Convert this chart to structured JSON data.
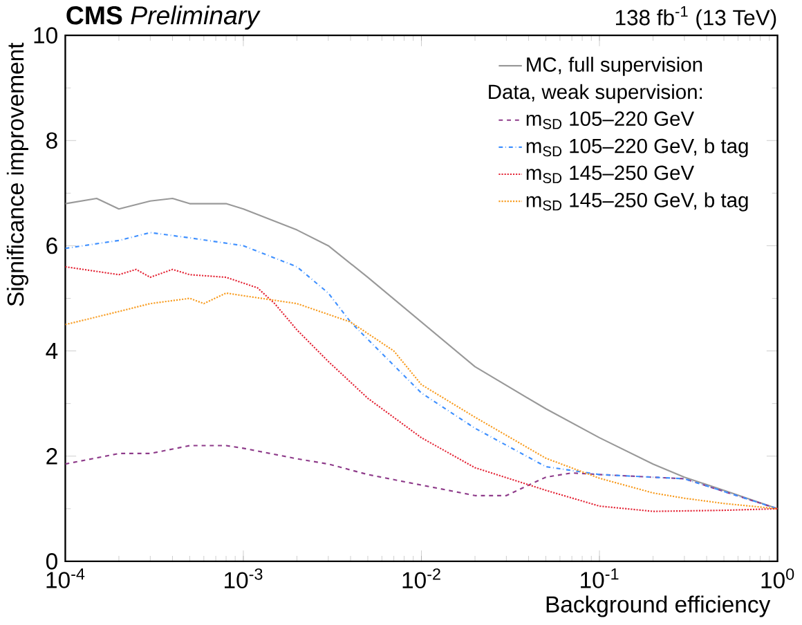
{
  "chart_data": {
    "type": "line",
    "title": "**CMS** *Preliminary*",
    "subtitle": "138 fb$^{-1}$ (13 TeV)",
    "xlabel": "Background efficiency",
    "ylabel": "Significance improvement",
    "legend_title": "Data, weak supervision:",
    "log": "x",
    "xlim": [
      0.0001,
      1
    ],
    "ylim": [
      0,
      10
    ],
    "xticks": [
      {
        "value": 0.0001,
        "label": "10$^{-4}$"
      },
      {
        "value": 0.001,
        "label": "10$^{-3}$"
      },
      {
        "value": 0.01,
        "label": "10$^{-2}$"
      },
      {
        "value": 0.1,
        "label": "10$^{-1}$"
      },
      {
        "value": 1,
        "label": "10$^{0}$"
      }
    ],
    "yticks": [
      0,
      2,
      4,
      6,
      8,
      10
    ],
    "grid": false,
    "legend": "top right",
    "marker": "none",
    "series": [
      {
        "name": "MC, full supervision",
        "color": "#999999",
        "line_style": "solid",
        "x": [
          0.0001,
          0.00015,
          0.0002,
          0.0003,
          0.0004,
          0.0005,
          0.0008,
          0.001,
          0.002,
          0.003,
          0.005,
          0.01,
          0.02,
          0.05,
          0.1,
          0.2,
          0.3,
          0.5,
          1
        ],
        "values": [
          6.8,
          6.9,
          6.7,
          6.85,
          6.9,
          6.8,
          6.8,
          6.7,
          6.3,
          6.0,
          5.4,
          4.55,
          3.7,
          2.9,
          2.35,
          1.85,
          1.6,
          1.35,
          1.0
        ]
      },
      {
        "name": "m$_{SD}$ 105–220 GeV",
        "color": "#8e3b8a",
        "line_style": "dashed",
        "x": [
          0.0001,
          0.0002,
          0.0003,
          0.0005,
          0.0008,
          0.001,
          0.002,
          0.003,
          0.005,
          0.01,
          0.02,
          0.03,
          0.04,
          0.05,
          0.07,
          0.1,
          0.3,
          1
        ],
        "values": [
          1.85,
          2.05,
          2.05,
          2.2,
          2.2,
          2.15,
          1.95,
          1.85,
          1.65,
          1.45,
          1.25,
          1.25,
          1.45,
          1.6,
          1.68,
          1.65,
          1.57,
          1.0
        ]
      },
      {
        "name": "m$_{SD}$ 105–220 GeV, b tag",
        "color": "#3f90ff",
        "line_style": "dashdot",
        "x": [
          0.0001,
          0.0002,
          0.0003,
          0.0005,
          0.001,
          0.002,
          0.003,
          0.004,
          0.01,
          0.02,
          0.05,
          0.1,
          0.3,
          1
        ],
        "values": [
          5.95,
          6.1,
          6.25,
          6.15,
          6.0,
          5.6,
          5.1,
          4.55,
          3.2,
          2.53,
          1.8,
          1.65,
          1.57,
          1.0
        ]
      },
      {
        "name": "m$_{SD}$ 145–250 GeV",
        "color": "#e42536",
        "line_style": "dotted",
        "x": [
          0.0001,
          0.0002,
          0.00025,
          0.0003,
          0.0004,
          0.0005,
          0.0008,
          0.0012,
          0.0015,
          0.002,
          0.003,
          0.005,
          0.01,
          0.02,
          0.05,
          0.1,
          0.2,
          0.5,
          1
        ],
        "values": [
          5.6,
          5.45,
          5.55,
          5.4,
          5.55,
          5.45,
          5.4,
          5.2,
          4.9,
          4.4,
          3.8,
          3.1,
          2.35,
          1.78,
          1.35,
          1.05,
          0.95,
          0.97,
          1.0
        ]
      },
      {
        "name": "m$_{SD}$ 145–250 GeV, b tag",
        "color": "#f89c20",
        "line_style": "dotted",
        "x": [
          0.0001,
          0.0002,
          0.0003,
          0.0005,
          0.0006,
          0.0008,
          0.001,
          0.002,
          0.004,
          0.007,
          0.01,
          0.02,
          0.05,
          0.1,
          0.2,
          0.3,
          0.5,
          1
        ],
        "values": [
          4.5,
          4.75,
          4.9,
          5.0,
          4.9,
          5.1,
          5.05,
          4.9,
          4.55,
          4.0,
          3.36,
          2.74,
          1.96,
          1.58,
          1.3,
          1.2,
          1.1,
          1.0
        ]
      }
    ]
  }
}
